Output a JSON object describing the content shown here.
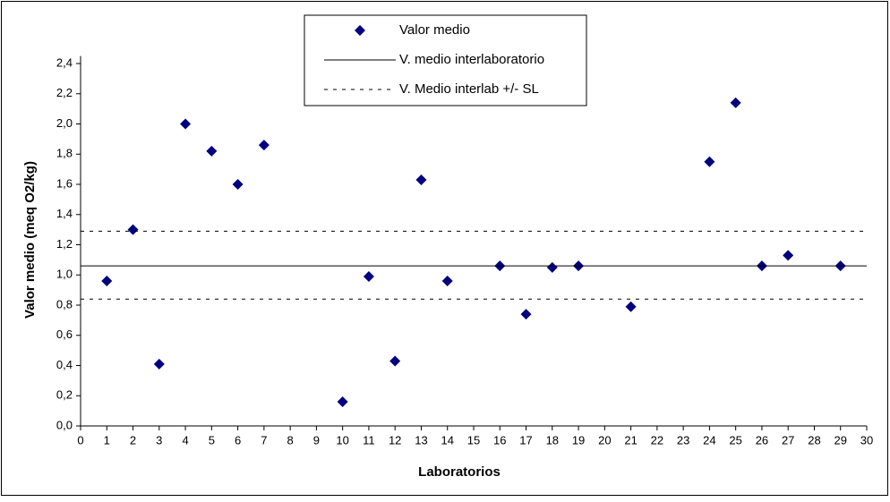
{
  "chart_data": {
    "type": "scatter",
    "x_label": "Laboratorios",
    "y_label": "Valor medio (meq O2/kg)",
    "xlim": [
      0,
      30
    ],
    "xticks": [
      0,
      1,
      2,
      3,
      4,
      5,
      6,
      7,
      8,
      9,
      10,
      11,
      12,
      13,
      14,
      15,
      16,
      17,
      18,
      19,
      20,
      21,
      22,
      23,
      24,
      25,
      26,
      27,
      28,
      29,
      30
    ],
    "ylim": [
      0,
      2.45
    ],
    "yticks": [
      {
        "value": 0,
        "label": "0,0"
      },
      {
        "value": 0.2,
        "label": "0,2"
      },
      {
        "value": 0.4,
        "label": "0,4"
      },
      {
        "value": 0.6,
        "label": "0,6"
      },
      {
        "value": 0.8,
        "label": "0,8"
      },
      {
        "value": 1.0,
        "label": "1,0"
      },
      {
        "value": 1.2,
        "label": "1,2"
      },
      {
        "value": 1.4,
        "label": "1,4"
      },
      {
        "value": 1.6,
        "label": "1,6"
      },
      {
        "value": 1.8,
        "label": "1,8"
      },
      {
        "value": 2.0,
        "label": "2,0"
      },
      {
        "value": 2.2,
        "label": "2,2"
      },
      {
        "value": 2.4,
        "label": "2,4"
      }
    ],
    "legend": "top",
    "series": [
      {
        "name": "Valor medio",
        "kind": "points",
        "color": "#000080",
        "x": [
          1,
          2,
          3,
          4,
          5,
          6,
          7,
          10,
          11,
          12,
          13,
          14,
          16,
          17,
          18,
          19,
          21,
          24,
          25,
          26,
          27,
          29
        ],
        "values": [
          0.96,
          1.3,
          0.41,
          2.0,
          1.82,
          1.6,
          1.86,
          0.16,
          0.99,
          0.43,
          1.63,
          0.96,
          1.06,
          0.74,
          1.05,
          1.06,
          0.79,
          1.75,
          2.14,
          1.06,
          1.13,
          1.06
        ]
      },
      {
        "name": "V. medio interlaboratorio",
        "kind": "solid",
        "color": "#000000",
        "x": [
          0,
          30
        ],
        "values": [
          1.06,
          1.06
        ]
      },
      {
        "name": "V. Medio interlab +/- SL",
        "kind": "dashed",
        "color": "#000000",
        "x": [
          0,
          30,
          null,
          0,
          30
        ],
        "values": [
          1.29,
          1.29,
          null,
          0.84,
          0.84
        ]
      }
    ]
  }
}
